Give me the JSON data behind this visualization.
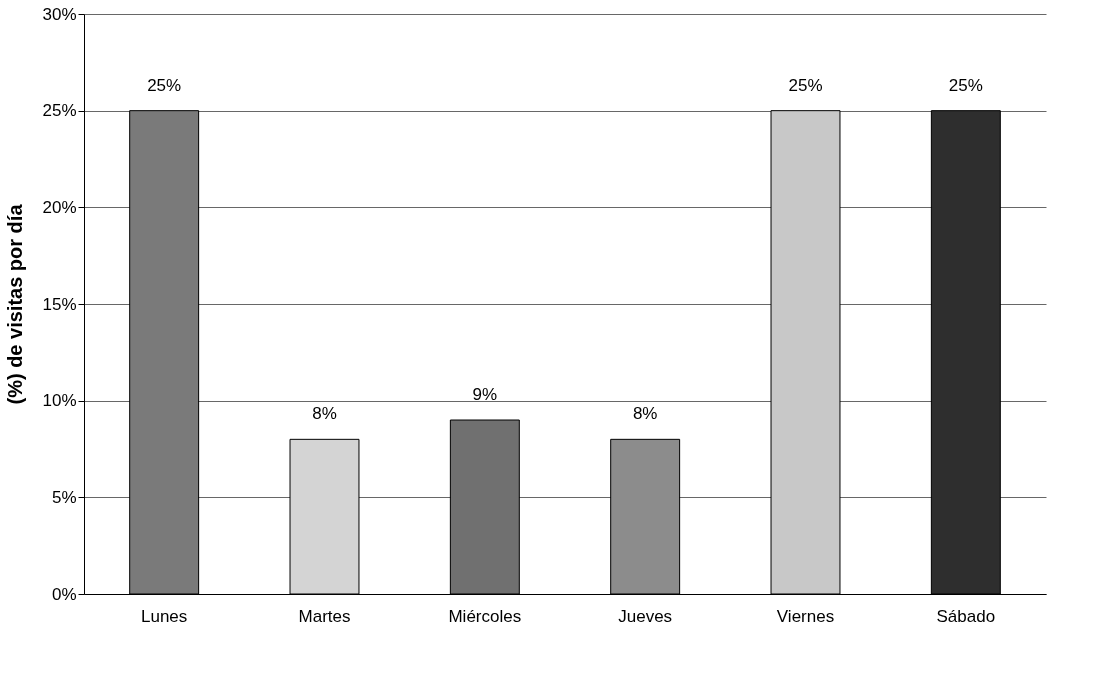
{
  "chart_data": {
    "type": "bar",
    "ylabel": "(%) de visitas por día",
    "categories": [
      "Lunes",
      "Martes",
      "Miércoles",
      "Jueves",
      "Viernes",
      "Sábado"
    ],
    "values": [
      25,
      8,
      9,
      8,
      25,
      25
    ],
    "colors": [
      "#7a7a7a",
      "#d4d4d4",
      "#707070",
      "#8c8c8c",
      "#c8c8c8",
      "#2e2e2e"
    ],
    "value_labels": [
      "25%",
      "8%",
      "9%",
      "8%",
      "25%",
      "25%"
    ],
    "ylim": [
      0,
      30
    ],
    "yticks": [
      {
        "value": 0,
        "label": "0%"
      },
      {
        "value": 5,
        "label": "5%"
      },
      {
        "value": 10,
        "label": "10%"
      },
      {
        "value": 15,
        "label": "15%"
      },
      {
        "value": 20,
        "label": "20%"
      },
      {
        "value": 25,
        "label": "25%"
      },
      {
        "value": 30,
        "label": "30%"
      }
    ],
    "grid": "y"
  }
}
